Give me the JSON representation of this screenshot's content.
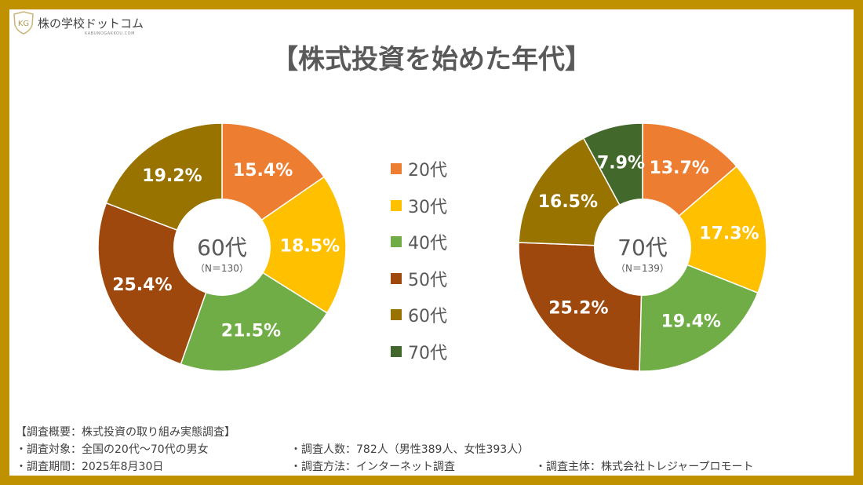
{
  "logo": {
    "name": "株の学校ドットコム",
    "sub": "KABUNOGAKKOU.COM",
    "mark": "KG"
  },
  "title": "【株式投資を始めた年代】",
  "colors": {
    "20代": "#ED7D31",
    "30代": "#FFC000",
    "40代": "#70AD47",
    "50代": "#9E480E",
    "60代": "#997300",
    "70代": "#43682B"
  },
  "legend": [
    "20代",
    "30代",
    "40代",
    "50代",
    "60代",
    "70代"
  ],
  "chart_data": [
    {
      "type": "pie",
      "donut": true,
      "center_label": "60代",
      "center_sub": "（N＝130）",
      "categories": [
        "20代",
        "30代",
        "40代",
        "50代",
        "60代"
      ],
      "values": [
        15.4,
        18.5,
        21.5,
        25.4,
        19.2
      ],
      "labels": [
        "15.4%",
        "18.5%",
        "21.5%",
        "25.4%",
        "19.2%"
      ]
    },
    {
      "type": "pie",
      "donut": true,
      "center_label": "70代",
      "center_sub": "（N＝139）",
      "categories": [
        "20代",
        "30代",
        "40代",
        "50代",
        "60代",
        "70代"
      ],
      "values": [
        13.7,
        17.3,
        19.4,
        25.2,
        16.5,
        7.9
      ],
      "labels": [
        "13.7%",
        "17.3%",
        "19.4%",
        "25.2%",
        "16.5%",
        "7.9%"
      ]
    }
  ],
  "notes": {
    "heading": "【調査概要：株式投資の取り組み実態調査】",
    "target": "・調査対象：全国の20代～70代の男女",
    "count": "・調査人数：782人（男性389人、女性393人）",
    "period": "・調査期間：2025年8月30日",
    "method": "・調査方法：インターネット調査",
    "sponsor": "・調査主体：株式会社トレジャープロモート"
  }
}
